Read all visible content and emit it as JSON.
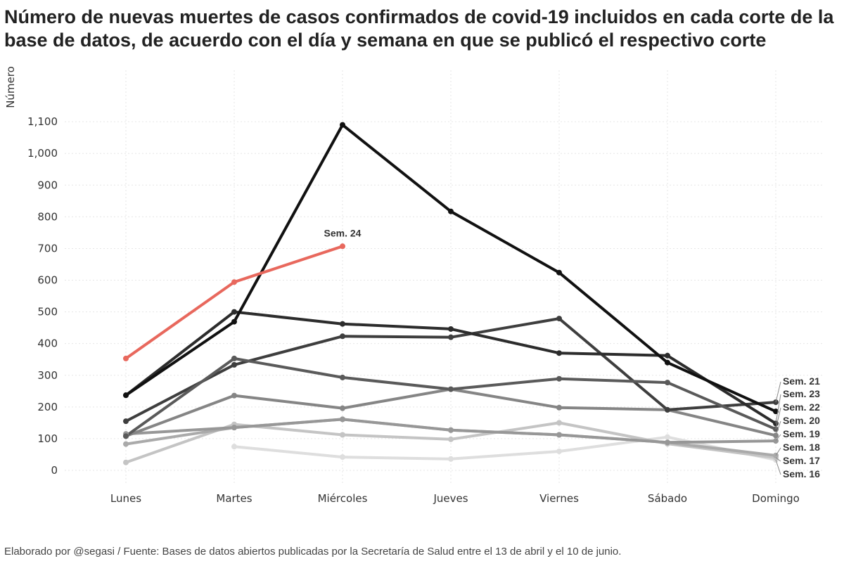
{
  "title": "Número de nuevas muertes de casos confirmados de covid-19 incluidos en cada corte de la base de datos, de acuerdo con el día y semana en que se publicó el respectivo corte",
  "caption": "Elaborado por @segasi / Fuente: Bases de datos abiertos publicadas por la Secretaría de Salud entre el 13 de abril y el 10 de junio.",
  "chart_data": {
    "type": "line",
    "title": "Número de nuevas muertes de casos confirmados de covid-19 incluidos en cada corte de la base de datos, de acuerdo con el día y semana en que se publicó el respectivo corte",
    "xlabel": "",
    "ylabel": "Número",
    "ylim": [
      0,
      1100
    ],
    "yticks": [
      0,
      100,
      200,
      300,
      400,
      500,
      600,
      700,
      800,
      900,
      1000,
      1100
    ],
    "ytick_labels": [
      "0",
      "100",
      "200",
      "300",
      "400",
      "500",
      "600",
      "700",
      "800",
      "900",
      "1,000",
      "1,100"
    ],
    "categories": [
      "Lunes",
      "Martes",
      "Miércoles",
      "Jueves",
      "Viernes",
      "Sábado",
      "Domingo"
    ],
    "grid": true,
    "legend": "direct labels at line ends",
    "series": [
      {
        "name": "Sem. 16",
        "color": "#dedede",
        "values": [
          null,
          75,
          42,
          36,
          60,
          105,
          33
        ]
      },
      {
        "name": "Sem. 17",
        "color": "#c4c4c4",
        "values": [
          25,
          145,
          112,
          98,
          150,
          84,
          40
        ]
      },
      {
        "name": "Sem. 18",
        "color": "#aaaaaa",
        "values": [
          83,
          135,
          161,
          127,
          112,
          88,
          47
        ]
      },
      {
        "name": "Sem. 19",
        "color": "#979797",
        "values": [
          115,
          135,
          161,
          127,
          112,
          88,
          93
        ]
      },
      {
        "name": "Sem. 20",
        "color": "#858585",
        "values": [
          108,
          236,
          196,
          256,
          198,
          191,
          110
        ]
      },
      {
        "name": "Sem. 21",
        "color": "#3e3e3e",
        "values": [
          155,
          333,
          423,
          420,
          479,
          191,
          215
        ]
      },
      {
        "name": "Sem. 22",
        "color": "#5a5a5a",
        "values": [
          108,
          353,
          293,
          256,
          289,
          277,
          130
        ]
      },
      {
        "name": "Sem. 23",
        "color": "#2c2c2c",
        "values": [
          237,
          500,
          462,
          446,
          370,
          362,
          148
        ]
      },
      {
        "name": "",
        "color": "#111111",
        "values": [
          237,
          469,
          1090,
          817,
          624,
          340,
          186
        ]
      },
      {
        "name": "Sem. 24",
        "color": "#e8685d",
        "values": [
          353,
          594,
          707,
          null,
          null,
          null,
          null
        ]
      }
    ],
    "end_labels": [
      "Sem. 21",
      "Sem. 23",
      "Sem. 22",
      "Sem. 20",
      "Sem. 19",
      "Sem. 18",
      "Sem. 17",
      "Sem. 16"
    ],
    "annotation": "Sem. 24"
  }
}
